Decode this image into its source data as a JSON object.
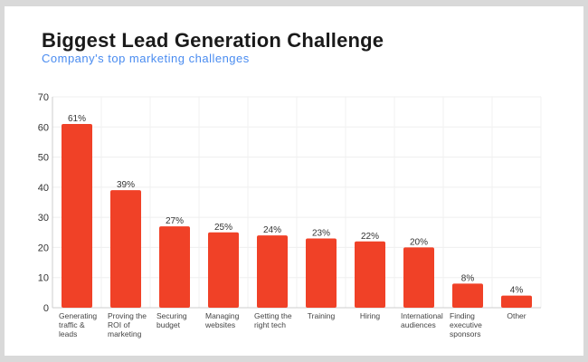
{
  "chart_data": {
    "type": "bar",
    "title": "Biggest Lead Generation Challenge",
    "subtitle": "Company's top marketing challenges",
    "categories": [
      [
        "Generating",
        "traffic &",
        "leads"
      ],
      [
        "Proving the",
        "ROI of",
        "marketing"
      ],
      [
        "Securing",
        "budget"
      ],
      [
        "Managing",
        "websites"
      ],
      [
        "Getting the",
        "right tech"
      ],
      [
        "Training"
      ],
      [
        "Hiring"
      ],
      [
        "International",
        "audiences"
      ],
      [
        "Finding",
        "executive",
        "sponsors"
      ],
      [
        "Other"
      ]
    ],
    "values": [
      61,
      39,
      27,
      25,
      24,
      23,
      22,
      20,
      8,
      4
    ],
    "data_labels": [
      "61%",
      "39%",
      "27%",
      "25%",
      "24%",
      "23%",
      "22%",
      "20%",
      "8%",
      "4%"
    ],
    "yticks": [
      "0",
      "10",
      "20",
      "30",
      "40",
      "50",
      "60",
      "70"
    ],
    "ylim": [
      0,
      70
    ],
    "grid": true,
    "xlabel": "",
    "ylabel": "",
    "colors": {
      "bar": "#f04127",
      "subtitle": "#4a8cf0",
      "background": "#d9d9d9"
    }
  }
}
